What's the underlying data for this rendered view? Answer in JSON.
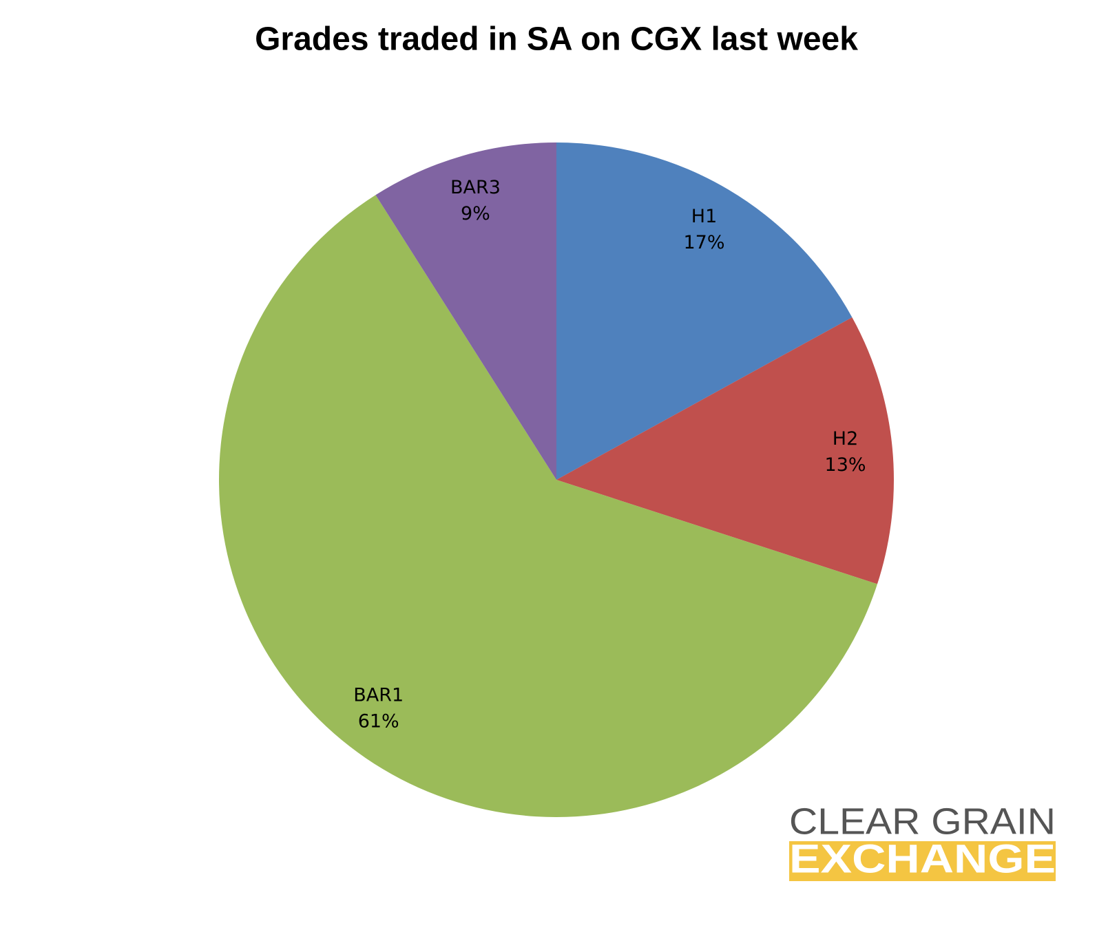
{
  "chart_data": {
    "type": "pie",
    "title": "Grades traded in SA on CGX last week",
    "categories": [
      "H1",
      "H2",
      "BAR1",
      "BAR3"
    ],
    "values": [
      17,
      13,
      61,
      9
    ],
    "value_labels": [
      "17%",
      "13%",
      "61%",
      "9%"
    ],
    "colors": [
      "#4f81bd",
      "#c0504d",
      "#9bbb59",
      "#8064a2"
    ]
  },
  "logo": {
    "line1": "CLEAR GRAIN",
    "line2": "EXCHANGE"
  }
}
